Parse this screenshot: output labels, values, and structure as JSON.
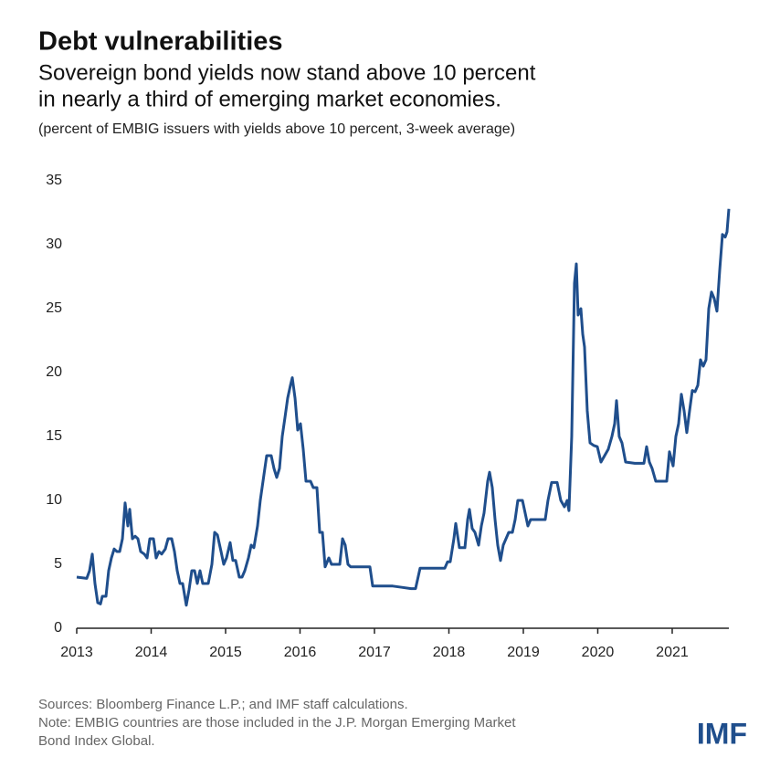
{
  "chart_data": {
    "type": "line",
    "title": "Debt vulnerabilities",
    "subtitle": [
      "Sovereign bond yields now stand above 10 percent",
      "in nearly a third of emerging market economies."
    ],
    "note": "(percent of EMBIG issuers with yields above 10 percent, 3-week average)",
    "sources": [
      "Sources: Bloomberg Finance L.P.; and IMF staff calculations.",
      "Note: EMBIG countries are those included in the J.P. Morgan Emerging Market",
      "Bond Index Global."
    ],
    "logo": "IMF",
    "xlim": [
      2013,
      2021.761
    ],
    "xticks": [
      2013,
      2014,
      2015,
      2016,
      2017,
      2018,
      2019,
      2020,
      2021
    ],
    "ylim": [
      0,
      35
    ],
    "yticks": [
      0,
      5,
      10,
      15,
      20,
      25,
      30,
      35
    ],
    "grid": false,
    "series": [
      {
        "color": "#1f4e8c",
        "x": [
          2013.0,
          2013.135,
          2013.172,
          2013.209,
          2013.245,
          2013.282,
          2013.319,
          2013.344,
          2013.393,
          2013.429,
          2013.466,
          2013.503,
          2013.54,
          2013.577,
          2013.614,
          2013.65,
          2013.687,
          2013.712,
          2013.748,
          2013.785,
          2013.822,
          2013.859,
          2013.908,
          2013.945,
          2013.982,
          2014.031,
          2014.067,
          2014.104,
          2014.141,
          2014.19,
          2014.227,
          2014.276,
          2014.313,
          2014.35,
          2014.387,
          2014.423,
          2014.472,
          2014.509,
          2014.546,
          2014.583,
          2014.62,
          2014.656,
          2014.693,
          2014.767,
          2014.816,
          2014.853,
          2014.89,
          2014.939,
          2014.975,
          2015.012,
          2015.061,
          2015.098,
          2015.135,
          2015.184,
          2015.221,
          2015.258,
          2015.307,
          2015.344,
          2015.38,
          2015.429,
          2015.466,
          2015.515,
          2015.552,
          2015.613,
          2015.65,
          2015.687,
          2015.724,
          2015.761,
          2015.798,
          2015.834,
          2015.871,
          2015.896,
          2015.933,
          2015.969,
          2016.006,
          2016.043,
          2016.08,
          2016.141,
          2016.178,
          2016.227,
          2016.264,
          2016.301,
          2016.337,
          2016.387,
          2016.423,
          2016.485,
          2016.534,
          2016.571,
          2016.607,
          2016.644,
          2016.681,
          2016.877,
          2016.939,
          2016.976,
          2017.245,
          2017.368,
          2017.491,
          2017.552,
          2017.613,
          2017.736,
          2017.945,
          2017.982,
          2018.018,
          2018.067,
          2018.092,
          2018.141,
          2018.215,
          2018.252,
          2018.276,
          2018.313,
          2018.35,
          2018.399,
          2018.436,
          2018.472,
          2018.521,
          2018.546,
          2018.583,
          2018.62,
          2018.656,
          2018.693,
          2018.73,
          2018.767,
          2018.804,
          2018.853,
          2018.89,
          2018.926,
          2018.988,
          2019.025,
          2019.061,
          2019.098,
          2019.147,
          2019.294,
          2019.331,
          2019.38,
          2019.454,
          2019.503,
          2019.552,
          2019.589,
          2019.613,
          2019.65,
          2019.687,
          2019.712,
          2019.736,
          2019.773,
          2019.798,
          2019.822,
          2019.859,
          2019.896,
          2019.945,
          2019.994,
          2020.043,
          2020.092,
          2020.141,
          2020.19,
          2020.227,
          2020.252,
          2020.288,
          2020.325,
          2020.374,
          2020.497,
          2020.62,
          2020.656,
          2020.693,
          2020.73,
          2020.779,
          2020.926,
          2020.963,
          2021.012,
          2021.049,
          2021.086,
          2021.123,
          2021.16,
          2021.196,
          2021.233,
          2021.27,
          2021.307,
          2021.344,
          2021.38,
          2021.417,
          2021.454,
          2021.491,
          2021.528,
          2021.564,
          2021.601,
          2021.638,
          2021.675,
          2021.712,
          2021.736,
          2021.761
        ],
        "values": [
          4.0,
          3.9,
          4.5,
          5.8,
          3.5,
          2.0,
          1.9,
          2.5,
          2.5,
          4.5,
          5.5,
          6.2,
          6.0,
          6.0,
          7.0,
          9.8,
          8.0,
          9.3,
          7.0,
          7.2,
          7.0,
          6.0,
          5.8,
          5.5,
          7.0,
          7.0,
          5.5,
          6.0,
          5.8,
          6.2,
          7.0,
          7.0,
          6.0,
          4.5,
          3.5,
          3.5,
          1.8,
          3.0,
          4.5,
          4.5,
          3.5,
          4.5,
          3.5,
          3.5,
          5.0,
          7.5,
          7.3,
          6.0,
          5.0,
          5.5,
          6.7,
          5.3,
          5.3,
          4.0,
          4.0,
          4.5,
          5.5,
          6.5,
          6.3,
          8.0,
          10.0,
          12.0,
          13.5,
          13.5,
          12.5,
          11.8,
          12.5,
          15.0,
          16.5,
          18.0,
          19.0,
          19.6,
          18.0,
          15.5,
          16.0,
          14.0,
          11.5,
          11.5,
          11.0,
          11.0,
          7.5,
          7.5,
          4.8,
          5.5,
          5.0,
          5.0,
          5.0,
          7.0,
          6.5,
          5.0,
          4.8,
          4.8,
          4.8,
          3.3,
          3.3,
          3.2,
          3.1,
          3.1,
          4.7,
          4.7,
          4.7,
          5.2,
          5.2,
          7.0,
          8.2,
          6.3,
          6.3,
          8.5,
          9.3,
          7.8,
          7.5,
          6.5,
          8.0,
          9.0,
          11.5,
          12.2,
          11.0,
          8.5,
          6.5,
          5.3,
          6.5,
          7.0,
          7.5,
          7.5,
          8.5,
          10.0,
          10.0,
          9.0,
          8.0,
          8.5,
          8.5,
          8.5,
          10.0,
          11.4,
          11.4,
          10.0,
          9.5,
          10.0,
          9.2,
          15.0,
          27.0,
          28.5,
          24.5,
          25.0,
          23.0,
          22.0,
          17.0,
          14.5,
          14.3,
          14.2,
          13.0,
          13.5,
          14.0,
          15.0,
          16.0,
          17.8,
          15.0,
          14.5,
          13.0,
          12.9,
          12.9,
          14.2,
          13.0,
          12.5,
          11.5,
          11.5,
          13.8,
          12.7,
          15.0,
          16.0,
          18.3,
          17.0,
          15.3,
          17.0,
          18.6,
          18.5,
          19.0,
          21.0,
          20.5,
          21.0,
          25.0,
          26.3,
          25.8,
          24.8,
          28.0,
          30.8,
          30.6,
          31.0,
          32.8
        ]
      }
    ]
  }
}
